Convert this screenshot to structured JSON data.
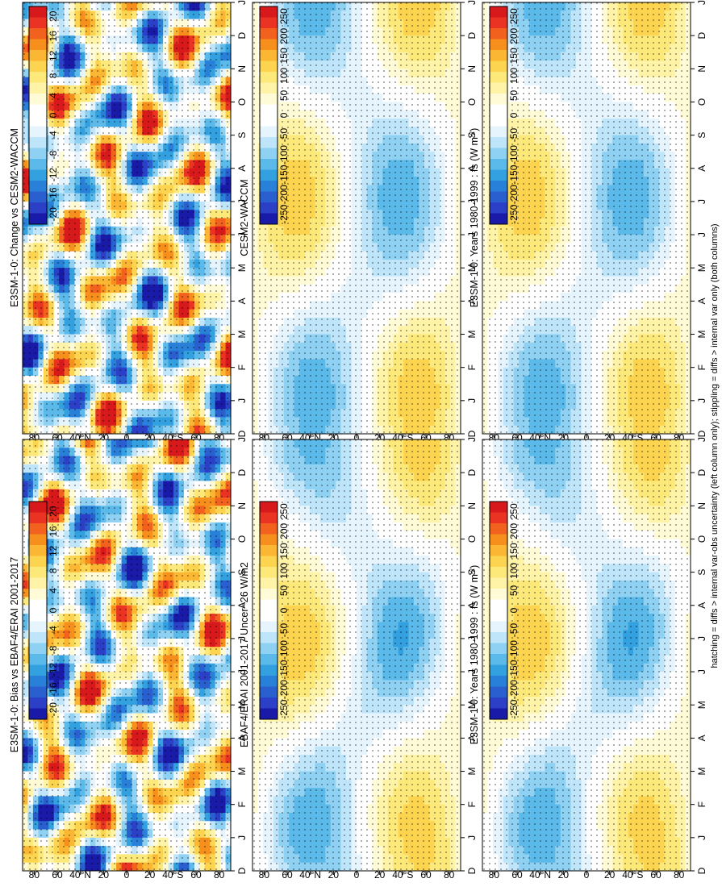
{
  "figure": {
    "footnote": "hatching = diffs > internal var-obs uncertainty (left column only); stippling = diffs > internal var only (both columns)"
  },
  "colorbars": {
    "main": {
      "labels": [
        "250",
        "200",
        "150",
        "100",
        "50",
        "0",
        "-50",
        "-100",
        "-150",
        "-200",
        "-250"
      ]
    },
    "diff": {
      "labels": [
        "20",
        "16",
        "12",
        "8",
        "4",
        "0",
        "-4",
        "-8",
        "-12",
        "-16",
        "-20"
      ]
    }
  },
  "colors": {
    "warm": [
      "#d7191c",
      "#ea3323",
      "#f2621e",
      "#f78f1d",
      "#fbb733",
      "#fdd44f",
      "#fde97a",
      "#fff3a8",
      "#fffbd6"
    ],
    "cool": [
      "#e6f5fd",
      "#bfe5fa",
      "#8fd1f3",
      "#5cbaea",
      "#33a0e0",
      "#2980d8",
      "#2a5fd0",
      "#2b3fc7",
      "#1a1aa8"
    ]
  },
  "chart_data": [
    {
      "type": "heatmap",
      "id": "p1",
      "title": "E3SM-1-0: Years 1980-1999 : fs (W m",
      "title_sup": "-2",
      "title_end": ")",
      "x_ticks": [
        "D",
        "J",
        "F",
        "M",
        "A",
        "M",
        "J",
        "J",
        "A",
        "S",
        "O",
        "N",
        "D",
        "J"
      ],
      "y_ticks": [
        "80",
        "60",
        "40°N",
        "20",
        "0",
        "20",
        "40°S",
        "60",
        "80"
      ],
      "range": [
        -250,
        250
      ],
      "field": "seasonal"
    },
    {
      "type": "heatmap",
      "id": "p2",
      "title": "E3SM-1-0: Years 1980-1999 : fs (W m",
      "title_sup": "-2",
      "title_end": ")",
      "x_ticks": [
        "D",
        "J",
        "F",
        "M",
        "A",
        "M",
        "J",
        "J",
        "A",
        "S",
        "O",
        "N",
        "D",
        "J"
      ],
      "y_ticks": [
        "80",
        "60",
        "40°N",
        "20",
        "0",
        "20",
        "40°S",
        "60",
        "80"
      ],
      "range": [
        -250,
        250
      ],
      "field": "seasonal"
    },
    {
      "type": "heatmap",
      "id": "p3",
      "title": "CESM2-WACCM",
      "x_ticks": [
        "D",
        "J",
        "F",
        "M",
        "A",
        "M",
        "J",
        "J",
        "A",
        "S",
        "O",
        "N",
        "D",
        "J"
      ],
      "y_ticks": [
        "80",
        "60",
        "40°N",
        "20",
        "0",
        "20",
        "40°S",
        "60",
        "80"
      ],
      "range": [
        -250,
        250
      ],
      "field": "seasonal"
    },
    {
      "type": "heatmap",
      "id": "p4",
      "title": "EBAF4/ERAI 2001-2017 Uncer~26 W/m2",
      "x_ticks": [
        "D",
        "J",
        "F",
        "M",
        "A",
        "M",
        "J",
        "J",
        "A",
        "S",
        "O",
        "N",
        "D",
        "J"
      ],
      "y_ticks": [
        "80",
        "60",
        "40°N",
        "20",
        "0",
        "20",
        "40°S",
        "60",
        "80"
      ],
      "range": [
        -250,
        250
      ],
      "field": "seasonal"
    },
    {
      "type": "heatmap",
      "id": "p5",
      "title": "E3SM-1-0: Change vs CESM2-WACCM",
      "x_ticks": [
        "D",
        "J",
        "F",
        "M",
        "A",
        "M",
        "J",
        "J",
        "A",
        "S",
        "O",
        "N",
        "D",
        "J"
      ],
      "y_ticks": [
        "80",
        "60",
        "40°N",
        "20",
        "0",
        "20",
        "40°S",
        "60",
        "80"
      ],
      "range": [
        -20,
        20
      ],
      "field": "difference"
    },
    {
      "type": "heatmap",
      "id": "p6",
      "title": "E3SM-1-0: Bias vs EBAF4/ERAI 2001-2017",
      "x_ticks": [
        "D",
        "J",
        "F",
        "M",
        "A",
        "M",
        "J",
        "J",
        "A",
        "S",
        "O",
        "N",
        "D",
        "J"
      ],
      "y_ticks": [
        "80",
        "60",
        "40°N",
        "20",
        "0",
        "20",
        "40°S",
        "60",
        "80"
      ],
      "range": [
        -20,
        20
      ],
      "field": "difference"
    }
  ]
}
